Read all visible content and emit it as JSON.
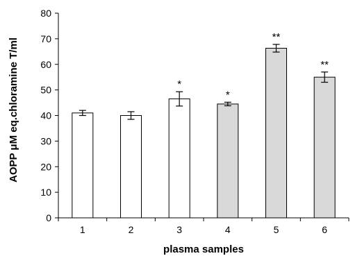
{
  "chart_data": {
    "type": "bar",
    "title": "",
    "xlabel": "plasma samples",
    "ylabel": "AOPP μM eq.chloramine T/ml",
    "categories": [
      "1",
      "2",
      "3",
      "4",
      "5",
      "6"
    ],
    "values": [
      41,
      40,
      46.5,
      44.5,
      66.3,
      55
    ],
    "errors": [
      1.0,
      1.5,
      2.8,
      0.7,
      1.5,
      2.0
    ],
    "significance": [
      "",
      "",
      "*",
      "*",
      "**",
      "**"
    ],
    "bar_fill": [
      "#ffffff",
      "#ffffff",
      "#ffffff",
      "#d9d9d9",
      "#d9d9d9",
      "#d9d9d9"
    ],
    "ylim": [
      0,
      80
    ],
    "yticks": [
      "0",
      "10",
      "20",
      "30",
      "40",
      "50",
      "60",
      "70",
      "80"
    ],
    "grid": false,
    "legend": "none"
  }
}
